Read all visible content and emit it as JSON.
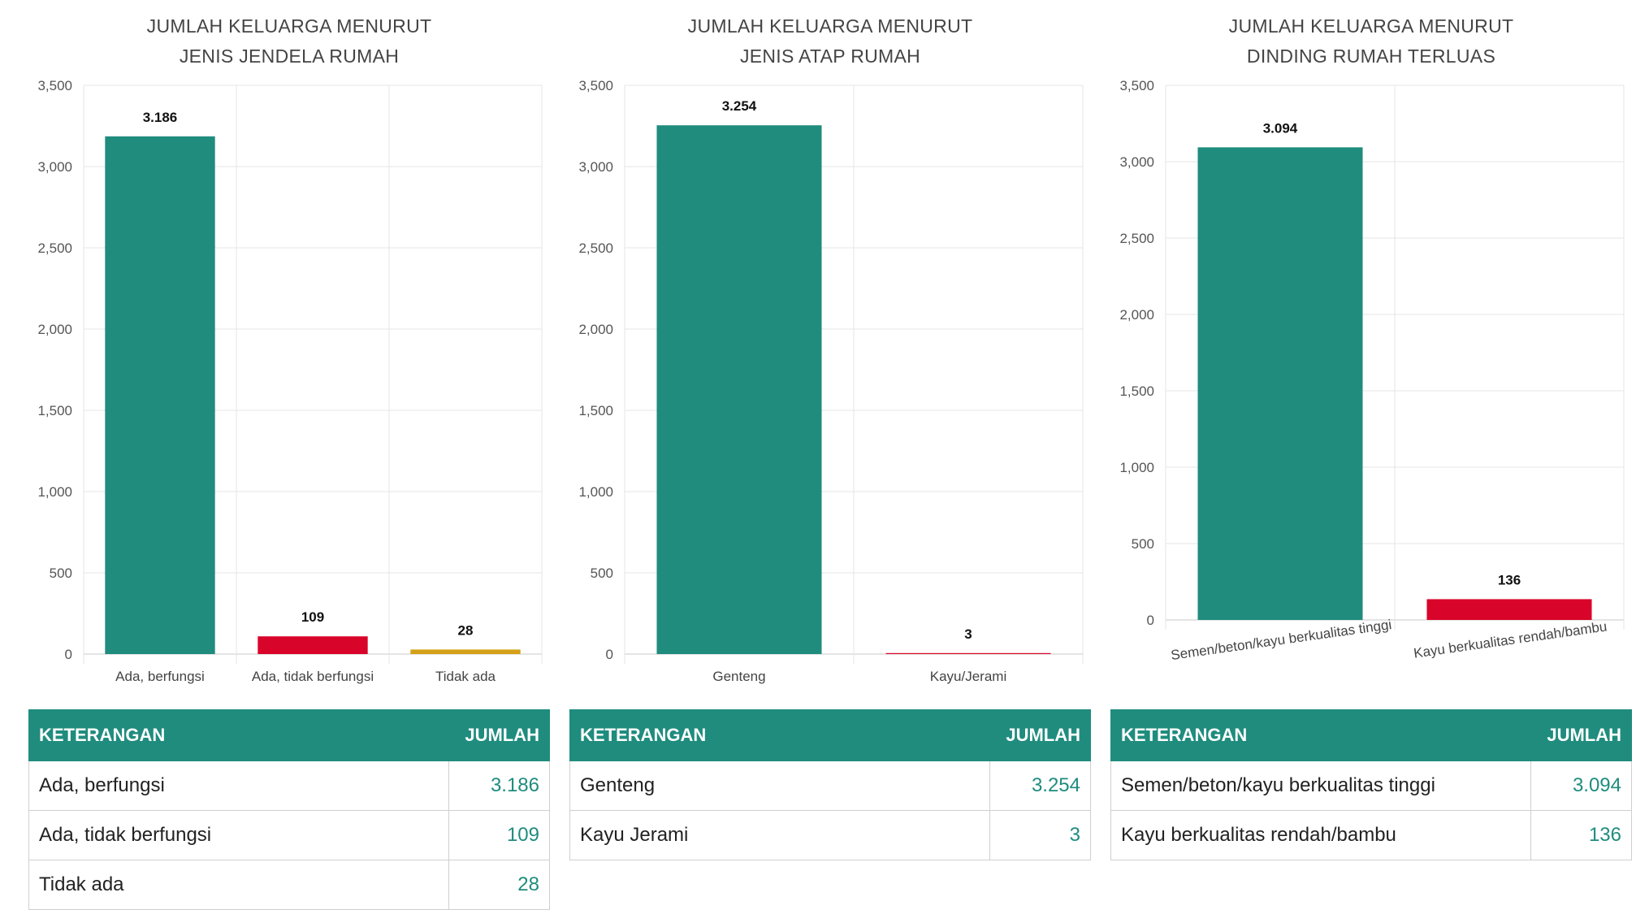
{
  "colors": {
    "teal": "#1f8c7e",
    "red": "#d90429",
    "gold": "#d4a017",
    "grid": "#e5e5e5"
  },
  "chart_data": [
    {
      "type": "bar",
      "title_lines": [
        "JUMLAH KELUARGA MENURUT",
        "JENIS JENDELA RUMAH"
      ],
      "categories": [
        "Ada, berfungsi",
        "Ada, tidak berfungsi",
        "Tidak ada"
      ],
      "values": [
        3186,
        109,
        28
      ],
      "value_labels": [
        "3.186",
        "109",
        "28"
      ],
      "bar_colors": [
        "#1f8c7e",
        "#d90429",
        "#d4a017"
      ],
      "yticks": [
        0,
        500,
        1000,
        1500,
        2000,
        2500,
        3000,
        3500
      ],
      "ytick_labels": [
        "0",
        "500",
        "1,000",
        "1,500",
        "2,000",
        "2,500",
        "3,000",
        "3,500"
      ],
      "ylim": [
        0,
        3500
      ],
      "grid": true,
      "xlabel_rotated": false
    },
    {
      "type": "bar",
      "title_lines": [
        "JUMLAH KELUARGA MENURUT",
        "JENIS ATAP RUMAH"
      ],
      "categories": [
        "Genteng",
        "Kayu/Jerami"
      ],
      "values": [
        3254,
        3
      ],
      "value_labels": [
        "3.254",
        "3"
      ],
      "bar_colors": [
        "#1f8c7e",
        "#d90429"
      ],
      "yticks": [
        0,
        500,
        1000,
        1500,
        2000,
        2500,
        3000,
        3500
      ],
      "ytick_labels": [
        "0",
        "500",
        "1,000",
        "1,500",
        "2,000",
        "2,500",
        "3,000",
        "3,500"
      ],
      "ylim": [
        0,
        3500
      ],
      "grid": true,
      "xlabel_rotated": false
    },
    {
      "type": "bar",
      "title_lines": [
        "JUMLAH KELUARGA MENURUT",
        "DINDING RUMAH TERLUAS"
      ],
      "categories": [
        "Semen/beton/kayu berkualitas tinggi",
        "Kayu berkualitas rendah/bambu"
      ],
      "values": [
        3094,
        136
      ],
      "value_labels": [
        "3.094",
        "136"
      ],
      "bar_colors": [
        "#1f8c7e",
        "#d90429"
      ],
      "yticks": [
        0,
        500,
        1000,
        1500,
        2000,
        2500,
        3000,
        3500
      ],
      "ytick_labels": [
        "0",
        "500",
        "1,000",
        "1,500",
        "2,000",
        "2,500",
        "3,000",
        "3,500"
      ],
      "ylim": [
        0,
        3500
      ],
      "grid": true,
      "xlabel_rotated": true
    }
  ],
  "tables": [
    {
      "header": {
        "label": "KETERANGAN",
        "value": "JUMLAH"
      },
      "rows": [
        {
          "label": "Ada, berfungsi",
          "value": "3.186"
        },
        {
          "label": "Ada, tidak berfungsi",
          "value": "109"
        },
        {
          "label": "Tidak ada",
          "value": "28"
        }
      ]
    },
    {
      "header": {
        "label": "KETERANGAN",
        "value": "JUMLAH"
      },
      "rows": [
        {
          "label": "Genteng",
          "value": "3.254"
        },
        {
          "label": "Kayu Jerami",
          "value": "3"
        }
      ]
    },
    {
      "header": {
        "label": "KETERANGAN",
        "value": "JUMLAH"
      },
      "rows": [
        {
          "label": "Semen/beton/kayu berkualitas tinggi",
          "value": "3.094"
        },
        {
          "label": "Kayu berkualitas rendah/bambu",
          "value": "136"
        }
      ]
    }
  ]
}
